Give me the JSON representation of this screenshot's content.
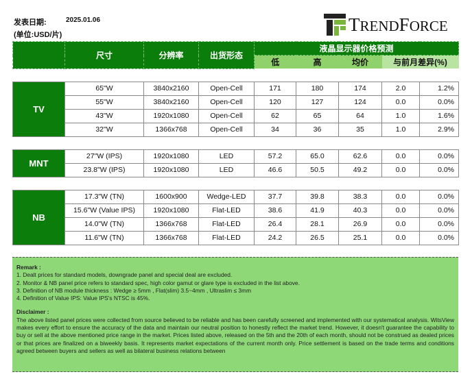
{
  "header": {
    "date_label": "发表日期:",
    "date": "2025.01.06",
    "unit": "(单位:USD/片)",
    "logo_text": "TrendForce"
  },
  "table": {
    "headers": {
      "size": "尺寸",
      "resolution": "分辨率",
      "form": "出货形态",
      "group": "液晶显示器价格预测",
      "low": "低",
      "high": "高",
      "avg": "均价",
      "diff": "与前月差异(%)"
    },
    "groups": [
      {
        "category": "TV",
        "rows": [
          [
            "65\"W",
            "3840x2160",
            "Open-Cell",
            "171",
            "180",
            "174",
            "2.0",
            "1.2%"
          ],
          [
            "55\"W",
            "3840x2160",
            "Open-Cell",
            "120",
            "127",
            "124",
            "0.0",
            "0.0%"
          ],
          [
            "43\"W",
            "1920x1080",
            "Open-Cell",
            "62",
            "65",
            "64",
            "1.0",
            "1.6%"
          ],
          [
            "32\"W",
            "1366x768",
            "Open-Cell",
            "34",
            "36",
            "35",
            "1.0",
            "2.9%"
          ]
        ]
      },
      {
        "category": "MNT",
        "rows": [
          [
            "27\"W (IPS)",
            "1920x1080",
            "LED",
            "57.2",
            "65.0",
            "62.6",
            "0.0",
            "0.0%"
          ],
          [
            "23.8\"W (IPS)",
            "1920x1080",
            "LED",
            "46.6",
            "50.5",
            "49.2",
            "0.0",
            "0.0%"
          ]
        ]
      },
      {
        "category": "NB",
        "rows": [
          [
            "17.3\"W (TN)",
            "1600x900",
            "Wedge-LED",
            "37.7",
            "39.8",
            "38.3",
            "0.0",
            "0.0%"
          ],
          [
            "15.6\"W (Value IPS)",
            "1920x1080",
            "Flat-LED",
            "38.6",
            "41.9",
            "40.3",
            "0.0",
            "0.0%"
          ],
          [
            "14.0\"W (TN)",
            "1366x768",
            "Flat-LED",
            "26.4",
            "28.1",
            "26.9",
            "0.0",
            "0.0%"
          ],
          [
            "11.6\"W (TN)",
            "1366x768",
            "Flat-LED",
            "24.2",
            "26.5",
            "25.1",
            "0.0",
            "0.0%"
          ]
        ]
      }
    ]
  },
  "remark": {
    "title": "Remark :",
    "items": [
      "1. Dealt prices for standard models, downgrade panel and special deal are excluded.",
      "2. Monitor & NB panel price refers to standard spec, high color gamut or glare type is excluded in the list above.",
      "3. Definition of NB module thickness : Wedge ≥ 5mm , Flat(slim) 3.5~4mm , Ultraslim ≤ 3mm",
      "4. Definition of Value IPS: Value IPS's NTSC is 45%."
    ],
    "disclaimer_title": "Disclaimer :",
    "disclaimer": "The above listed panel prices were collected from source believed to be reliable and has been carefully screened and implemented with our systematical analysis. WitsView makes every effort to ensure the accuracy of the data and maintain our neutral position to honestly reflect the market trend. However, it doesn't guarantee the capability to buy or sell at the above mentioned price range in the market. Prices listed above, released on the 5th and the 20th of each month, should not be construed as dealed prices or that prices are finalized on a biweekly basis. It represents market expectations of the current month only. Price settlement is based on the trade terms and conditions agreed between buyers and sellers as well as bilateral business relations between"
  },
  "colors": {
    "dark_green": "#0a7d0a",
    "light_green": "#8fd16a",
    "remark_bg": "#8ed878"
  }
}
